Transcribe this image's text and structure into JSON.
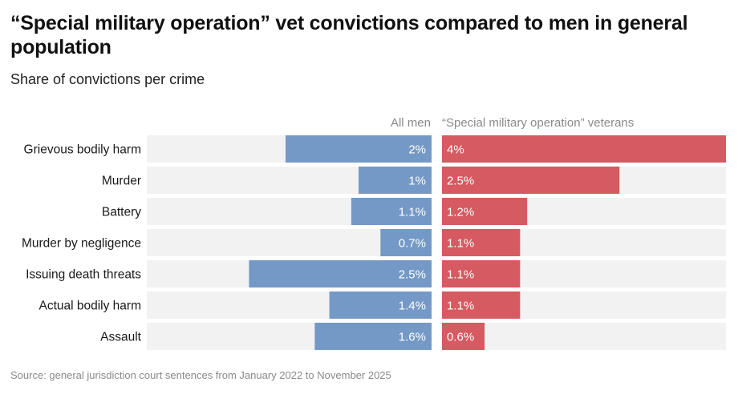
{
  "title": "“Special military operation” vet convictions compared to men in general population",
  "subtitle": "Share of convictions per crime",
  "source": "Source: general jurisdiction court sentences from January 2022 to November 2025",
  "colors": {
    "all_men": "#7599c6",
    "veterans": "#d65a61",
    "track": "#f2f2f2",
    "category_text": "#1a1a1a",
    "value_text": "#ffffff"
  },
  "chart_data": {
    "type": "bar",
    "orientation": "horizontal",
    "layout": "back-to-back",
    "title": "“Special military operation” vet convictions compared to men in general population",
    "subtitle": "Share of convictions per crime",
    "categories": [
      "Grievous bodily harm",
      "Murder",
      "Battery",
      "Murder by negligence",
      "Issuing death threats",
      "Actual bodily harm",
      "Assault"
    ],
    "series": [
      {
        "name": "All men",
        "values": [
          2,
          1,
          1.1,
          0.7,
          2.5,
          1.4,
          1.6
        ],
        "labels": [
          "2%",
          "1%",
          "1.1%",
          "0.7%",
          "2.5%",
          "1.4%",
          "1.6%"
        ],
        "xlim": [
          0,
          3.9
        ]
      },
      {
        "name": "“Special military operation” veterans",
        "values": [
          4,
          2.5,
          1.2,
          1.1,
          1.1,
          1.1,
          0.6
        ],
        "labels": [
          "4%",
          "2.5%",
          "1.2%",
          "1.1%",
          "1.1%",
          "1.1%",
          "0.6%"
        ],
        "xlim": [
          0,
          4
        ]
      }
    ],
    "unit": "%",
    "grid": false,
    "legend": "column headers above each side"
  }
}
